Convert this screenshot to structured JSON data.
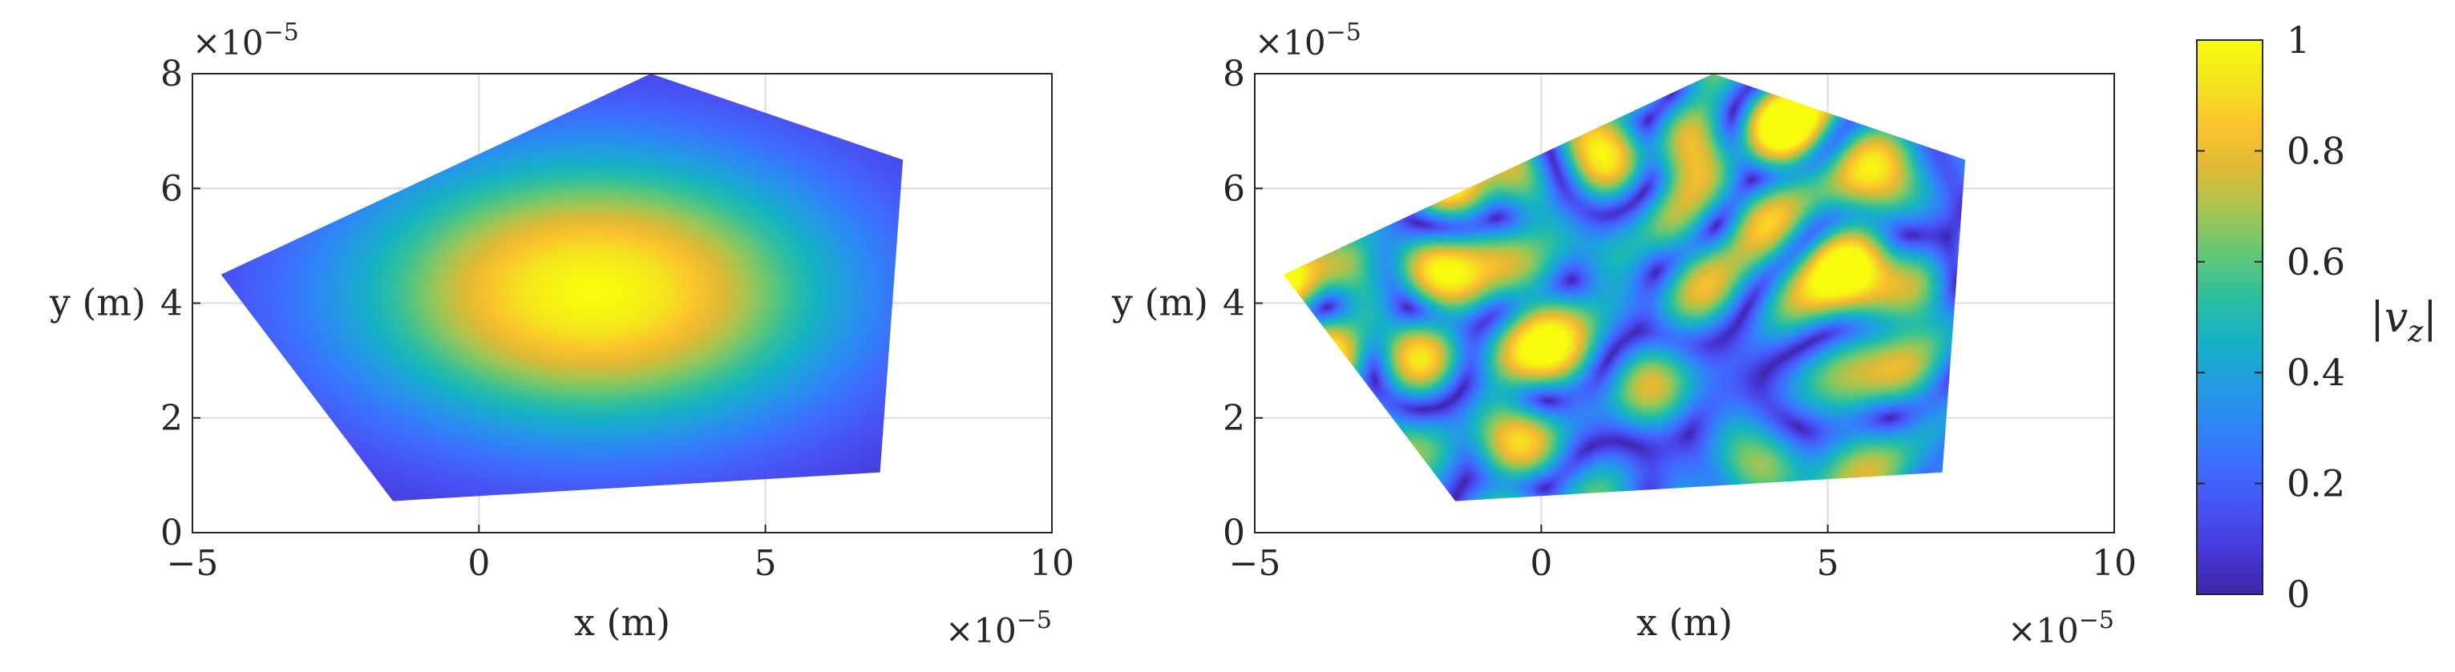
{
  "chart_data": [
    {
      "type": "heatmap",
      "title": "",
      "xlabel": "x (m)",
      "ylabel": "y (m)",
      "x_exponent_label": "×10",
      "x_exponent_power": "−5",
      "y_exponent_label": "×10",
      "y_exponent_power": "−5",
      "xlim": [
        -5,
        10
      ],
      "ylim": [
        0,
        8
      ],
      "xticks": [
        -5,
        0,
        5,
        10
      ],
      "xtick_labels": [
        "−5",
        "0",
        "5",
        "10"
      ],
      "yticks": [
        0,
        2,
        4,
        6,
        8
      ],
      "ytick_labels": [
        "0",
        "2",
        "4",
        "6",
        "8"
      ],
      "grid": true,
      "units_scale": "1e-5",
      "region_vertices": [
        [
          3.0,
          8.0
        ],
        [
          7.4,
          6.5
        ],
        [
          7.0,
          1.05
        ],
        [
          -1.5,
          0.55
        ],
        [
          -4.5,
          4.5
        ]
      ],
      "field": "smooth single peak",
      "peak_location": [
        2.0,
        4.2
      ],
      "peak_value": 1.0,
      "edge_value": 0.05
    },
    {
      "type": "heatmap",
      "title": "",
      "xlabel": "x (m)",
      "ylabel": "y (m)",
      "x_exponent_label": "×10",
      "x_exponent_power": "−5",
      "y_exponent_label": "×10",
      "y_exponent_power": "−5",
      "xlim": [
        -5,
        10
      ],
      "ylim": [
        0,
        8
      ],
      "xticks": [
        -5,
        0,
        5,
        10
      ],
      "xtick_labels": [
        "−5",
        "0",
        "5",
        "10"
      ],
      "yticks": [
        0,
        2,
        4,
        6,
        8
      ],
      "ytick_labels": [
        "0",
        "2",
        "4",
        "6",
        "8"
      ],
      "grid": true,
      "units_scale": "1e-5",
      "region_vertices": [
        [
          3.0,
          8.0
        ],
        [
          7.4,
          6.5
        ],
        [
          7.0,
          1.05
        ],
        [
          -1.5,
          0.55
        ],
        [
          -4.5,
          4.5
        ]
      ],
      "field": "speckle pattern",
      "value_range": [
        0,
        1
      ]
    }
  ],
  "colorbar": {
    "label": "|v",
    "label_sub": "z",
    "label_end": "|",
    "range": [
      0,
      1
    ],
    "ticks": [
      0,
      0.2,
      0.4,
      0.6,
      0.8,
      1
    ],
    "tick_labels": [
      "0",
      "0.2",
      "0.4",
      "0.6",
      "0.8",
      "1"
    ],
    "colormap": "parula",
    "colormap_stops": [
      "#3e26a8",
      "#4538d7",
      "#4852f4",
      "#3f6cfe",
      "#2e86f6",
      "#229ee0",
      "#16b2c5",
      "#2ebf9f",
      "#65c776",
      "#a6c551",
      "#dfba35",
      "#fcc32d",
      "#f5e41f",
      "#f9fb0e"
    ]
  }
}
